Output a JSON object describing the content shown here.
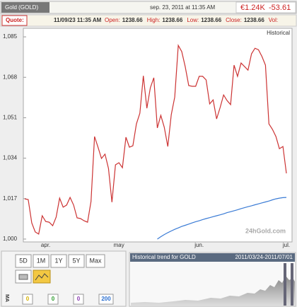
{
  "header": {
    "title": "Gold (GOLD)",
    "timestamp": "sep. 23, 2011 at 11:35 AM",
    "price": "€1.24K",
    "change": "-53.61"
  },
  "quote": {
    "label": "Quote:",
    "time": "11/09/23 11:35 AM",
    "fields": [
      {
        "label": "Open:",
        "value": 1238.66
      },
      {
        "label": "High:",
        "value": 1238.66
      },
      {
        "label": "Low:",
        "value": 1238.66
      },
      {
        "label": "Close:",
        "value": 1238.66
      },
      {
        "label": "Vol:"
      }
    ]
  },
  "chart_data": {
    "type": "line",
    "annotation": "Historical",
    "watermark": "24hGold.com",
    "categories": [
      null,
      null,
      null,
      null,
      null,
      null,
      "apr.",
      null,
      null,
      null,
      null,
      null,
      null,
      null,
      null,
      null,
      null,
      null,
      null,
      null,
      null,
      null,
      null,
      null,
      null,
      null,
      null,
      "may",
      null,
      null,
      null,
      null,
      null,
      null,
      null,
      null,
      null,
      null,
      null,
      null,
      null,
      null,
      null,
      null,
      null,
      null,
      null,
      null,
      null,
      null,
      "jun.",
      null,
      null,
      null,
      null,
      null,
      null,
      null,
      null,
      null,
      null,
      null,
      null,
      null,
      null,
      null,
      null,
      null,
      null,
      null,
      null,
      null,
      null,
      null,
      null,
      "jul."
    ],
    "series": [
      {
        "color": "#cc3333",
        "values": [
          1016.9,
          1016.6,
          1006.8,
          1003.0,
          1002.1,
          1009.8,
          1007.4,
          1007.1,
          1005.6,
          1009.2,
          1017.2,
          1013.4,
          1014.3,
          1017.5,
          1014.3,
          1008.9,
          1008.6,
          1007.7,
          1007.1,
          1015.8,
          1043.1,
          1038.6,
          1033.9,
          1035.7,
          1029.7,
          1015.5,
          1031.2,
          1032.1,
          1030.0,
          1042.8,
          1038.6,
          1039.2,
          1048.4,
          1052.9,
          1068.6,
          1055.0,
          1063.6,
          1067.8,
          1046.7,
          1052.0,
          1047.0,
          1038.9,
          1052.3,
          1059.7,
          1081.4,
          1078.8,
          1072.5,
          1064.5,
          1064.2,
          1064.2,
          1068.4,
          1068.4,
          1066.9,
          1056.8,
          1058.5,
          1050.5,
          1055.3,
          1060.6,
          1058.2,
          1056.5,
          1073.1,
          1068.4,
          1074.0,
          1072.5,
          1071.0,
          1077.9,
          1080.2,
          1079.6,
          1076.7,
          1073.1,
          1048.4,
          1046.1,
          1043.1,
          1038.0,
          1038.9,
          1027.6
        ]
      },
      {
        "color": "#3a7bd5",
        "values": [
          null,
          null,
          null,
          null,
          null,
          null,
          null,
          null,
          null,
          null,
          null,
          null,
          null,
          null,
          null,
          null,
          null,
          null,
          null,
          null,
          null,
          null,
          null,
          null,
          null,
          null,
          null,
          null,
          null,
          null,
          null,
          null,
          null,
          null,
          null,
          null,
          null,
          null,
          1000.0,
          1001.0,
          1001.9,
          1002.7,
          1003.4,
          1004.1,
          1004.7,
          1005.3,
          1005.8,
          1006.3,
          1006.8,
          1007.3,
          1007.7,
          1008.2,
          1008.6,
          1009.0,
          1009.4,
          1009.8,
          1010.2,
          1010.6,
          1011.1,
          1011.5,
          1011.9,
          1012.3,
          1012.8,
          1013.2,
          1013.6,
          1014.0,
          1014.4,
          1014.8,
          1015.2,
          1015.6,
          1016.0,
          1016.5,
          1016.9,
          1017.2,
          1017.4,
          1017.5
        ]
      }
    ],
    "ylim": [
      998.8,
      1088
    ],
    "yticks": [
      {
        "value": 1000,
        "label": "1,000"
      },
      {
        "value": 1017,
        "label": "1,017"
      },
      {
        "value": 1034,
        "label": "1,034"
      },
      {
        "value": 1051,
        "label": "1,051"
      },
      {
        "value": 1068,
        "label": "1,068"
      },
      {
        "value": 1085,
        "label": "1,085"
      }
    ]
  },
  "controls": {
    "periods": [
      "5D",
      "1M",
      "1Y",
      "5Y",
      "Max"
    ],
    "ma_label": "MA",
    "ma_values": [
      0,
      0,
      0,
      200
    ]
  },
  "trend": {
    "title": "Historical trend for GOLD",
    "range": "2011/03/24-2011/07/01"
  }
}
